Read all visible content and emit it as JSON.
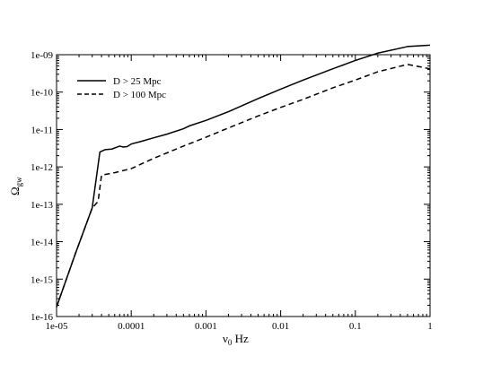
{
  "chart_data": {
    "type": "line",
    "xscale": "log",
    "yscale": "log",
    "xlim": [
      1e-05,
      1
    ],
    "ylim": [
      1e-16,
      1e-09
    ],
    "xticks": [
      1e-05,
      0.0001,
      0.001,
      0.01,
      0.1,
      1
    ],
    "xtick_labels": [
      "1e-05",
      "0.0001",
      "0.001",
      "0.01",
      "0.1",
      "1"
    ],
    "yticks": [
      1e-16,
      1e-15,
      1e-14,
      1e-13,
      1e-12,
      1e-11,
      1e-10,
      1e-09
    ],
    "ytick_labels": [
      "1e-16",
      "1e-15",
      "1e-14",
      "1e-13",
      "1e-12",
      "1e-11",
      "1e-10",
      "1e-09"
    ],
    "grid": false,
    "legend_position": "top-left",
    "series": [
      {
        "name": "D > 25 Mpc",
        "style": "solid",
        "color": "#000000",
        "x": [
          1e-05,
          1.8e-05,
          3e-05,
          3.8e-05,
          4.5e-05,
          5.5e-05,
          7e-05,
          7.8e-05,
          8.8e-05,
          0.0001,
          0.00013,
          0.0002,
          0.0003,
          0.0005,
          0.0006,
          0.001,
          0.002,
          0.005,
          0.01,
          0.02,
          0.05,
          0.1,
          0.2,
          0.5,
          1
        ],
        "y": [
          1.8e-16,
          5e-15,
          8e-14,
          2.5e-12,
          2.9e-12,
          3e-12,
          3.6e-12,
          3.4e-12,
          3.5e-12,
          4.1e-12,
          4.7e-12,
          6e-12,
          7.5e-12,
          1.05e-11,
          1.25e-11,
          1.75e-11,
          3e-11,
          6.7e-11,
          1.2e-10,
          2.1e-10,
          4.2e-10,
          7e-10,
          1.1e-09,
          1.65e-09,
          1.8e-09
        ]
      },
      {
        "name": "D > 100 Mpc",
        "style": "dashed",
        "color": "#000000",
        "x": [
          1e-05,
          1.8e-05,
          3e-05,
          3.6e-05,
          4e-05,
          6e-05,
          0.0001,
          0.0002,
          0.0005,
          0.001,
          0.002,
          0.005,
          0.01,
          0.02,
          0.05,
          0.1,
          0.2,
          0.5,
          1
        ],
        "y": [
          1.8e-16,
          5e-15,
          8e-14,
          1.2e-13,
          6e-13,
          7e-13,
          9e-13,
          1.7e-12,
          3.6e-12,
          6.2e-12,
          1.1e-11,
          2.3e-11,
          3.9e-11,
          6.4e-11,
          1.3e-10,
          2.1e-10,
          3.5e-10,
          5.5e-10,
          4.2e-10
        ]
      }
    ],
    "xlabel_main": "ν",
    "xlabel_sub": "0",
    "xlabel_rest": " Hz",
    "ylabel_main": "Ω",
    "ylabel_sub": "gw"
  }
}
